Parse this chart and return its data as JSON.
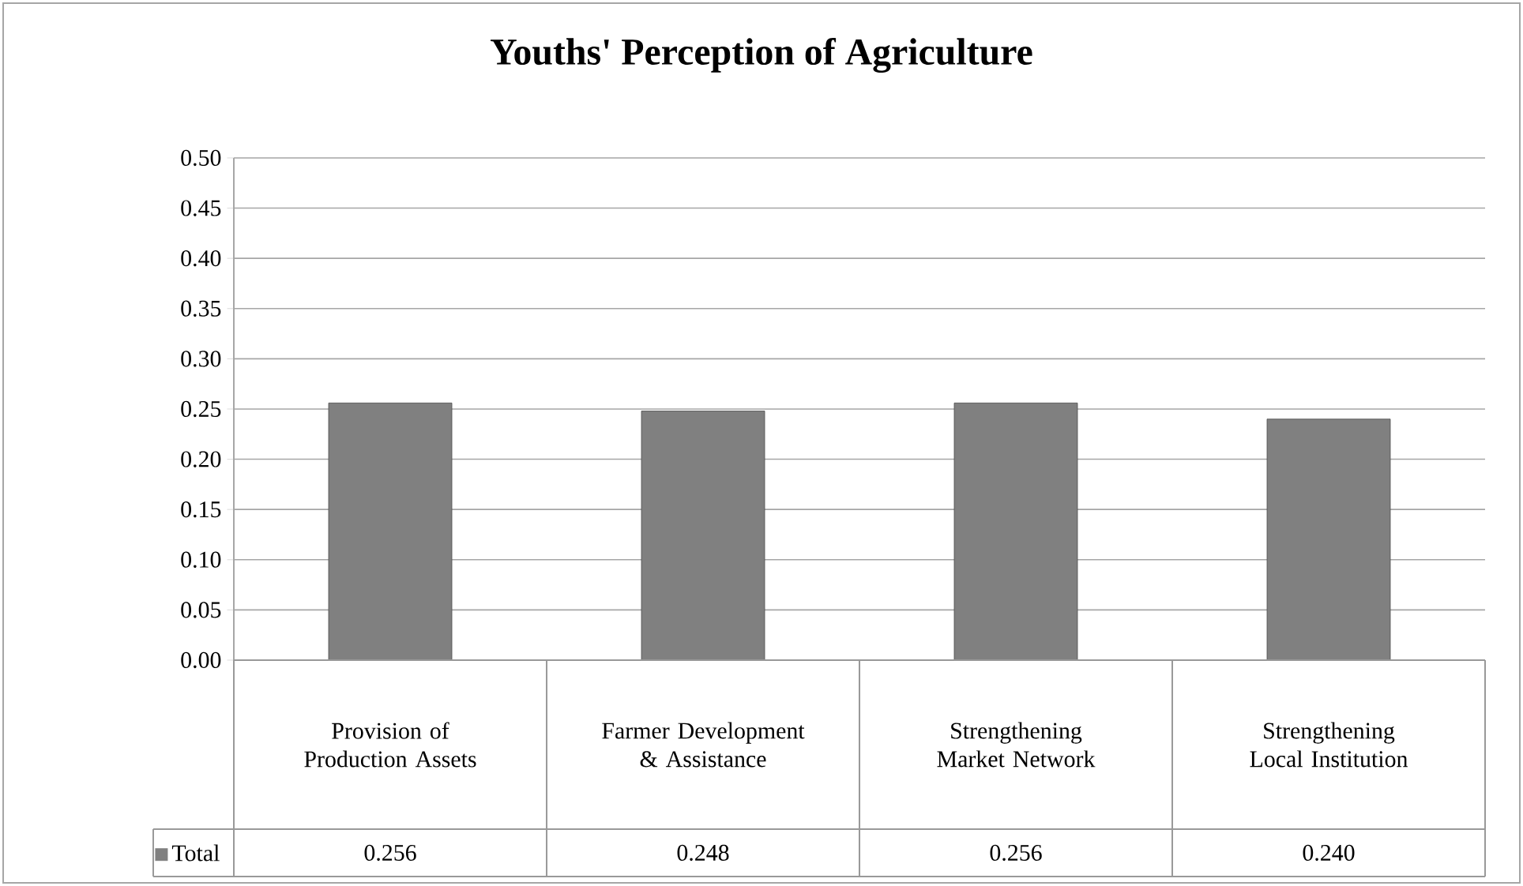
{
  "chart_data": {
    "type": "bar",
    "title": "Youths' Perception of Agriculture",
    "categories": [
      "Provision of Production Assets",
      "Farmer Development & Assistance",
      "Strengthening Market Network",
      "Strengthening Local Institution"
    ],
    "series": [
      {
        "name": "Total",
        "color": "#808080",
        "values": [
          0.256,
          0.248,
          0.256,
          0.24
        ]
      }
    ],
    "value_labels": [
      "0.256",
      "0.248",
      "0.256",
      "0.240"
    ],
    "ylim": [
      0,
      0.5
    ],
    "yticks": [
      {
        "value": 0,
        "label": "0.00"
      },
      {
        "value": 0.05,
        "label": "0.05"
      },
      {
        "value": 0.1,
        "label": "0.10"
      },
      {
        "value": 0.15,
        "label": "0.15"
      },
      {
        "value": 0.2,
        "label": "0.20"
      },
      {
        "value": 0.25,
        "label": "0.25"
      },
      {
        "value": 0.3,
        "label": "0.30"
      },
      {
        "value": 0.35,
        "label": "0.35"
      },
      {
        "value": 0.4,
        "label": "0.40"
      },
      {
        "value": 0.45,
        "label": "0.45"
      },
      {
        "value": 0.5,
        "label": "0.50"
      }
    ],
    "grid": "y",
    "legend": "bottom"
  }
}
